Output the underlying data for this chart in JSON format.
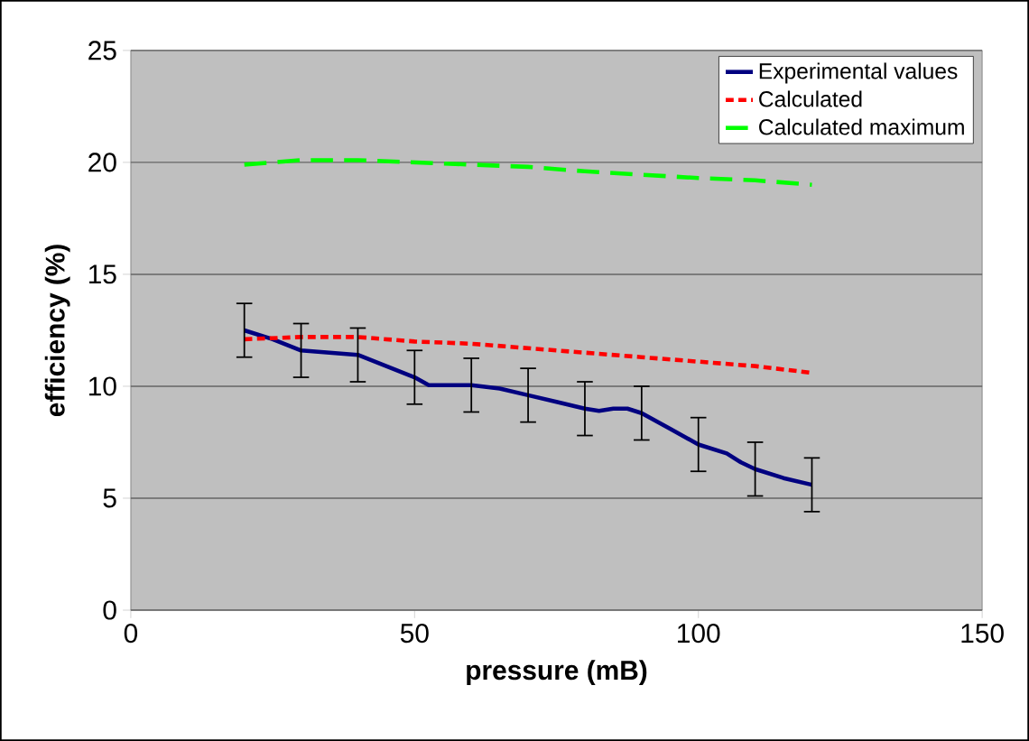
{
  "chart_data": {
    "type": "line",
    "xlabel": "pressure (mB)",
    "ylabel": "efficiency (%)",
    "xlim": [
      0,
      150
    ],
    "xticks": [
      0,
      50,
      100,
      150
    ],
    "ylim": [
      0,
      25
    ],
    "yticks": [
      0,
      5,
      10,
      15,
      20,
      25
    ],
    "grid": "y",
    "legend": "top right",
    "series": [
      {
        "name": "Experimental values",
        "color": "#000080",
        "line_style": "solid",
        "x": [
          20,
          25,
          30,
          35,
          40,
          45,
          50,
          52.5,
          55,
          60,
          65,
          70,
          75,
          80,
          82.5,
          85,
          87.5,
          90,
          95,
          100,
          105,
          107.5,
          110,
          115,
          120
        ],
        "values": [
          12.5,
          12.1,
          11.6,
          11.5,
          11.4,
          10.9,
          10.4,
          10.05,
          10.05,
          10.05,
          9.9,
          9.6,
          9.3,
          9.0,
          8.9,
          9.0,
          9.0,
          8.8,
          8.1,
          7.4,
          7.0,
          6.6,
          6.3,
          5.9,
          5.6
        ],
        "errors": [
          1.2,
          null,
          1.2,
          null,
          1.2,
          null,
          1.2,
          null,
          null,
          1.2,
          null,
          1.2,
          null,
          1.2,
          null,
          null,
          null,
          1.2,
          null,
          1.2,
          null,
          null,
          1.2,
          null,
          1.2
        ]
      },
      {
        "name": "Calculated",
        "color": "#ff0000",
        "line_style": "dotted",
        "x": [
          20,
          30,
          40,
          50,
          60,
          70,
          80,
          90,
          100,
          110,
          120
        ],
        "values": [
          12.1,
          12.2,
          12.2,
          12.0,
          11.9,
          11.7,
          11.5,
          11.3,
          11.1,
          10.9,
          10.6
        ]
      },
      {
        "name": "Calculated maximum",
        "color": "#00ff00",
        "line_style": "dashed",
        "x": [
          20,
          30,
          40,
          50,
          60,
          70,
          80,
          90,
          100,
          110,
          120
        ],
        "values": [
          19.9,
          20.1,
          20.1,
          20.0,
          19.9,
          19.8,
          19.6,
          19.45,
          19.3,
          19.2,
          19.0
        ]
      }
    ]
  }
}
